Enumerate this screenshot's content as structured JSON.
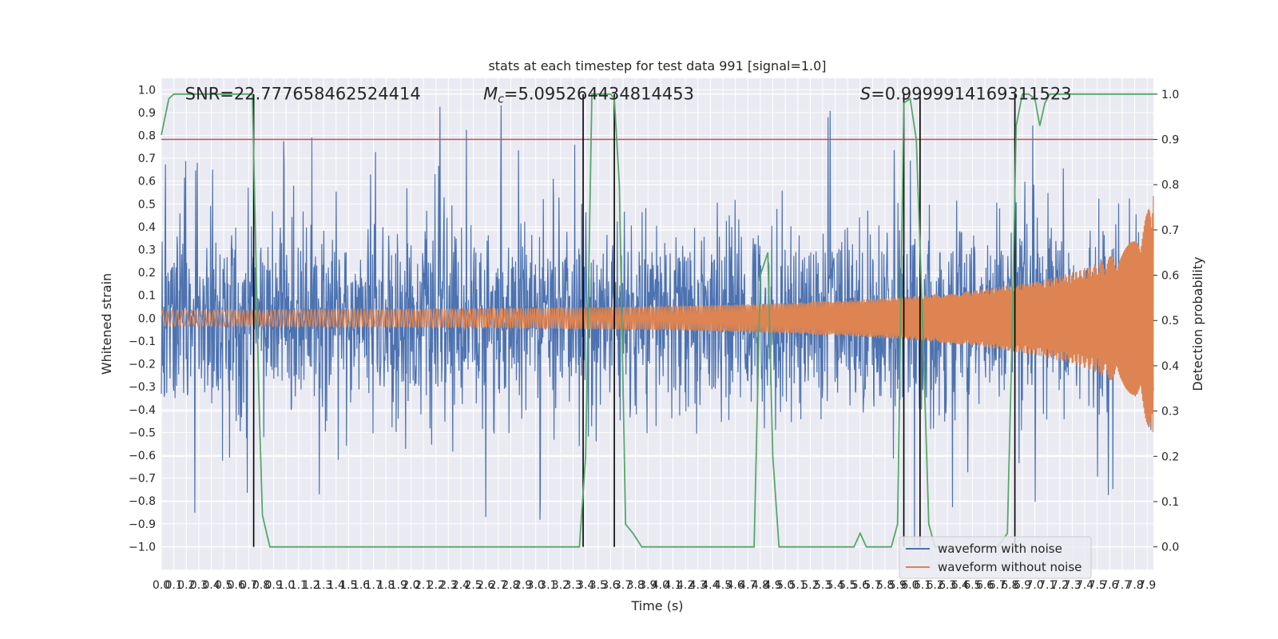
{
  "chart_data": {
    "type": "line",
    "title": "stats at each timestep for test data 991 [signal=1.0]",
    "xlabel": "Time (s)",
    "ylabel": "Whitened strain",
    "ylabel_right": "Detection probability",
    "xlim": [
      0,
      7.95
    ],
    "ylim": [
      -1.1,
      1.05
    ],
    "ylim_right": [
      -0.05,
      1.035
    ],
    "x_ticks": [
      0.0,
      0.1,
      0.2,
      0.3,
      0.4,
      0.5,
      0.6,
      0.7,
      0.8,
      0.9,
      1.0,
      1.1,
      1.2,
      1.3,
      1.4,
      1.5,
      1.6,
      1.7,
      1.8,
      1.9,
      2.0,
      2.1,
      2.2,
      2.3,
      2.4,
      2.5,
      2.6,
      2.7,
      2.8,
      2.9,
      3.0,
      3.1,
      3.2,
      3.3,
      3.4,
      3.5,
      3.6,
      3.7,
      3.8,
      3.9,
      4.0,
      4.1,
      4.2,
      4.3,
      4.4,
      4.5,
      4.6,
      4.7,
      4.8,
      4.9,
      5.0,
      5.1,
      5.2,
      5.3,
      5.4,
      5.5,
      5.6,
      5.7,
      5.8,
      5.9,
      6.0,
      6.1,
      6.2,
      6.3,
      6.4,
      6.5,
      6.6,
      6.7,
      6.8,
      6.9,
      7.0,
      7.1,
      7.2,
      7.3,
      7.4,
      7.5,
      7.6,
      7.7,
      7.8,
      7.9
    ],
    "x_tick_labels": [
      "0.0",
      "0.1",
      "0.2",
      "0.3",
      "0.4",
      "0.5",
      "0.6",
      "0.7",
      "0.8",
      "0.9",
      "1.0",
      "1.1",
      "1.2",
      "1.3",
      "1.4",
      "1.5",
      "1.6",
      "1.7",
      "1.8",
      "1.9",
      "2.0",
      "2.1",
      "2.2",
      "2.3",
      "2.4",
      "2.5",
      "2.6",
      "2.7",
      "2.8",
      "2.9",
      "3.0",
      "3.1",
      "3.2",
      "3.3",
      "3.4",
      "3.5",
      "3.6",
      "3.7",
      "3.8",
      "3.9",
      "4.0",
      "4.1",
      "4.2",
      "4.3",
      "4.4",
      "4.5",
      "4.6",
      "4.7",
      "4.8",
      "4.9",
      "5.0",
      "5.1",
      "5.2",
      "5.3",
      "5.4",
      "5.5",
      "5.6",
      "5.7",
      "5.8",
      "5.9",
      "6.0",
      "6.1",
      "6.2",
      "6.3",
      "6.4",
      "6.5",
      "6.6",
      "6.7",
      "6.8",
      "6.9",
      "7.0",
      "7.1",
      "7.2",
      "7.3",
      "7.4",
      "7.5",
      "7.6",
      "7.7",
      "7.8",
      "7.9"
    ],
    "y_ticks": [
      1.0,
      0.9,
      0.8,
      0.7,
      0.6,
      0.5,
      0.4,
      0.3,
      0.2,
      0.1,
      0.0,
      -0.1,
      -0.2,
      -0.3,
      -0.4,
      -0.5,
      -0.6,
      -0.7,
      -0.8,
      -0.9,
      -1.0
    ],
    "y_tick_labels": [
      "1.0",
      "0.9",
      "0.8",
      "0.7",
      "0.6",
      "0.5",
      "0.4",
      "0.3",
      "0.2",
      "0.1",
      "0.0",
      "−0.1",
      "−0.2",
      "−0.3",
      "−0.4",
      "−0.5",
      "−0.6",
      "−0.7",
      "−0.8",
      "−0.9",
      "−1.0"
    ],
    "y_right_ticks": [
      1.0,
      0.9,
      0.8,
      0.7,
      0.6,
      0.5,
      0.4,
      0.3,
      0.2,
      0.1,
      0.0
    ],
    "y_right_tick_labels": [
      "1.0",
      "0.9",
      "0.8",
      "0.7",
      "0.6",
      "0.5",
      "0.4",
      "0.3",
      "0.2",
      "0.1",
      "0.0"
    ],
    "annotations": [
      {
        "text": "SNR=22.777658462524414",
        "x": 0.19,
        "y": 1.0
      },
      {
        "text": "M_c=5.095264434814453",
        "x": 2.58,
        "y": 1.0,
        "subscript": "c",
        "prefix": "M",
        "value_text": "=5.095264434814453"
      },
      {
        "text": "S=0.9999914169311523",
        "x": 5.6,
        "y": 1.0,
        "prefix": "S",
        "value_text": "=0.9999914169311523"
      }
    ],
    "series": [
      {
        "name": "waveform with noise",
        "color": "#4c72b0",
        "typical_amplitude": 0.38,
        "peak_range": [
          -1.0,
          0.98
        ]
      },
      {
        "name": "waveform without noise",
        "color": "#dd8452",
        "envelope": {
          "x": [
            0.0,
            1.0,
            2.0,
            3.0,
            3.5,
            4.0,
            4.5,
            5.0,
            5.5,
            6.0,
            6.5,
            7.0,
            7.3,
            7.5,
            7.7,
            7.8,
            7.9,
            7.95
          ],
          "amplitude": [
            0.035,
            0.037,
            0.04,
            0.045,
            0.048,
            0.052,
            0.058,
            0.066,
            0.078,
            0.095,
            0.12,
            0.16,
            0.2,
            0.24,
            0.3,
            0.36,
            0.46,
            0.6
          ]
        }
      },
      {
        "name": "detection probability",
        "color": "#55a868",
        "axis": "right",
        "x": [
          0.0,
          0.06,
          0.1,
          0.2,
          0.3,
          0.4,
          0.5,
          0.6,
          0.7,
          0.73,
          0.78,
          0.81,
          0.87,
          0.9,
          1.0,
          1.5,
          2.0,
          2.5,
          3.0,
          3.3,
          3.35,
          3.4,
          3.45,
          3.5,
          3.55,
          3.6,
          3.63,
          3.67,
          3.72,
          3.78,
          3.85,
          3.95,
          4.0,
          4.3,
          4.6,
          4.7,
          4.75,
          4.8,
          4.86,
          4.9,
          4.95,
          5.0,
          5.3,
          5.5,
          5.55,
          5.6,
          5.65,
          5.7,
          5.75,
          5.85,
          5.9,
          5.95,
          6.0,
          6.05,
          6.1,
          6.15,
          6.2,
          6.3,
          6.6,
          6.7,
          6.78,
          6.82,
          6.85,
          6.9,
          6.95,
          7.0,
          7.04,
          7.08,
          7.12,
          7.2,
          7.5,
          7.8,
          7.95
        ],
        "y": [
          0.91,
          0.99,
          1.0,
          1.0,
          1.0,
          1.0,
          1.0,
          1.0,
          1.0,
          1.0,
          0.35,
          0.07,
          0.0,
          0.0,
          0.0,
          0.0,
          0.0,
          0.0,
          0.0,
          0.0,
          0.0,
          0.2,
          1.0,
          1.0,
          1.0,
          1.0,
          0.99,
          0.8,
          0.05,
          0.03,
          0.0,
          0.0,
          0.0,
          0.0,
          0.0,
          0.0,
          0.0,
          0.6,
          0.65,
          0.2,
          0.0,
          0.0,
          0.0,
          0.0,
          0.0,
          0.03,
          0.0,
          0.0,
          0.0,
          0.0,
          0.05,
          0.98,
          0.99,
          0.9,
          0.5,
          0.05,
          0.0,
          0.0,
          0.0,
          0.0,
          0.03,
          0.5,
          0.93,
          1.0,
          1.0,
          0.99,
          0.93,
          0.98,
          1.0,
          1.0,
          1.0,
          1.0,
          1.0
        ]
      }
    ],
    "hlines_right": [
      {
        "y": 0.9,
        "color": "#c44e52"
      }
    ],
    "vlines": [
      0.74,
      3.38,
      3.63,
      5.95,
      6.08,
      6.84
    ],
    "vline_color": "#000000",
    "legend": {
      "placement": "lower-right",
      "entries": [
        "waveform with noise",
        "waveform without noise"
      ]
    },
    "grid": true,
    "background": "#eaeaf2"
  }
}
